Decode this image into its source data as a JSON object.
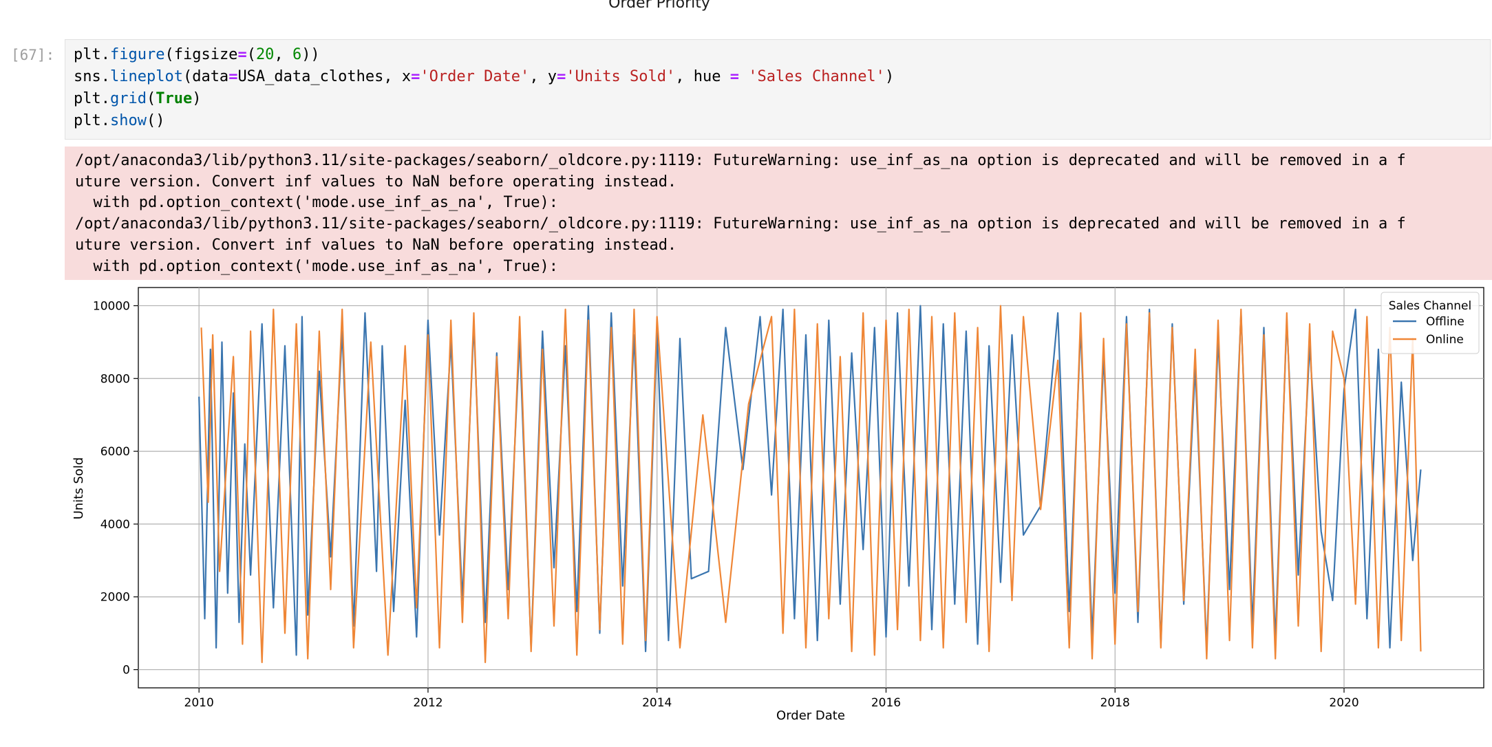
{
  "previous_output": {
    "title": "Order Priority"
  },
  "cell": {
    "prompt": "[67]:",
    "code_lines": [
      "plt.figure(figsize=(20, 6))",
      "sns.lineplot(data=USA_data_clothes, x='Order Date', y='Units Sold', hue = 'Sales Channel')",
      "plt.grid(True)",
      "plt.show()"
    ],
    "warnings": [
      "/opt/anaconda3/lib/python3.11/site-packages/seaborn/_oldcore.py:1119: FutureWarning: use_inf_as_na option is deprecated and will be removed in a f",
      "uture version. Convert inf values to NaN before operating instead.",
      "  with pd.option_context('mode.use_inf_as_na', True):",
      "/opt/anaconda3/lib/python3.11/site-packages/seaborn/_oldcore.py:1119: FutureWarning: use_inf_as_na option is deprecated and will be removed in a f",
      "uture version. Convert inf values to NaN before operating instead.",
      "  with pd.option_context('mode.use_inf_as_na', True):"
    ]
  },
  "chart_data": {
    "type": "line",
    "title": "",
    "xlabel": "Order Date",
    "ylabel": "Units Sold",
    "x_ticks": [
      "2010",
      "2012",
      "2014",
      "2016",
      "2018",
      "2020"
    ],
    "y_ticks": [
      "0",
      "2000",
      "4000",
      "6000",
      "8000",
      "10000"
    ],
    "xlim": [
      2009.47,
      2021.22
    ],
    "ylim": [
      -500,
      10500
    ],
    "grid": true,
    "legend": {
      "title": "Sales Channel",
      "placement": "top-right"
    },
    "colors": {
      "Offline": "#3a75af",
      "Online": "#ef8636"
    },
    "series": [
      {
        "name": "Offline",
        "x": [
          2010.0,
          2010.05,
          2010.1,
          2010.15,
          2010.2,
          2010.25,
          2010.3,
          2010.35,
          2010.4,
          2010.45,
          2010.55,
          2010.65,
          2010.75,
          2010.85,
          2010.9,
          2010.95,
          2011.05,
          2011.15,
          2011.25,
          2011.35,
          2011.45,
          2011.55,
          2011.6,
          2011.7,
          2011.8,
          2011.9,
          2012.0,
          2012.1,
          2012.2,
          2012.3,
          2012.4,
          2012.5,
          2012.6,
          2012.7,
          2012.8,
          2012.9,
          2013.0,
          2013.1,
          2013.2,
          2013.3,
          2013.4,
          2013.5,
          2013.6,
          2013.7,
          2013.8,
          2013.9,
          2014.0,
          2014.1,
          2014.2,
          2014.3,
          2014.45,
          2014.6,
          2014.75,
          2014.9,
          2015.0,
          2015.1,
          2015.2,
          2015.3,
          2015.4,
          2015.5,
          2015.6,
          2015.7,
          2015.8,
          2015.9,
          2016.0,
          2016.1,
          2016.2,
          2016.3,
          2016.4,
          2016.5,
          2016.6,
          2016.7,
          2016.8,
          2016.9,
          2017.0,
          2017.1,
          2017.2,
          2017.35,
          2017.5,
          2017.6,
          2017.7,
          2017.8,
          2017.9,
          2018.0,
          2018.1,
          2018.2,
          2018.3,
          2018.4,
          2018.5,
          2018.6,
          2018.7,
          2018.8,
          2018.9,
          2019.0,
          2019.1,
          2019.2,
          2019.3,
          2019.4,
          2019.5,
          2019.6,
          2019.7,
          2019.8,
          2019.9,
          2020.0,
          2020.1,
          2020.2,
          2020.3,
          2020.4,
          2020.5,
          2020.6,
          2020.67
        ],
        "y": [
          7500,
          1400,
          8800,
          600,
          9000,
          2100,
          7600,
          1300,
          6200,
          2600,
          9500,
          1700,
          8900,
          400,
          9700,
          1500,
          8200,
          3100,
          9300,
          1200,
          9800,
          2700,
          8900,
          1600,
          7400,
          900,
          9600,
          3700,
          9000,
          1900,
          9500,
          1300,
          8700,
          2200,
          9100,
          600,
          9300,
          2800,
          8900,
          1600,
          10000,
          1000,
          9800,
          2300,
          9200,
          500,
          9300,
          800,
          9100,
          2500,
          2700,
          9400,
          5500,
          9700,
          4800,
          9900,
          1400,
          9200,
          800,
          9600,
          1800,
          8700,
          3300,
          9400,
          900,
          9800,
          2300,
          10000,
          1100,
          9500,
          1800,
          9300,
          700,
          8900,
          2400,
          9200,
          3700,
          4500,
          9800,
          1600,
          9400,
          900,
          8600,
          2100,
          9700,
          1300,
          9900,
          700,
          9500,
          1800,
          8300,
          600,
          9100,
          2200,
          9800,
          1200,
          9400,
          800,
          9600,
          2600,
          8900,
          3800,
          1900,
          7700,
          9900,
          1400,
          8800,
          600,
          7900,
          3000,
          5500
        ]
      },
      {
        "name": "Online",
        "x": [
          2010.02,
          2010.08,
          2010.12,
          2010.18,
          2010.3,
          2010.38,
          2010.45,
          2010.55,
          2010.65,
          2010.75,
          2010.85,
          2010.95,
          2011.05,
          2011.15,
          2011.25,
          2011.35,
          2011.5,
          2011.65,
          2011.8,
          2011.9,
          2012.0,
          2012.1,
          2012.2,
          2012.3,
          2012.4,
          2012.5,
          2012.6,
          2012.7,
          2012.8,
          2012.9,
          2013.0,
          2013.1,
          2013.2,
          2013.3,
          2013.4,
          2013.5,
          2013.6,
          2013.7,
          2013.8,
          2013.9,
          2014.0,
          2014.2,
          2014.4,
          2014.6,
          2014.8,
          2015.0,
          2015.1,
          2015.2,
          2015.3,
          2015.4,
          2015.5,
          2015.6,
          2015.7,
          2015.8,
          2015.9,
          2016.0,
          2016.1,
          2016.2,
          2016.3,
          2016.4,
          2016.5,
          2016.6,
          2016.7,
          2016.8,
          2016.9,
          2017.0,
          2017.1,
          2017.2,
          2017.35,
          2017.5,
          2017.6,
          2017.7,
          2017.8,
          2017.9,
          2018.0,
          2018.1,
          2018.2,
          2018.3,
          2018.4,
          2018.5,
          2018.6,
          2018.7,
          2018.8,
          2018.9,
          2019.0,
          2019.1,
          2019.2,
          2019.3,
          2019.4,
          2019.5,
          2019.6,
          2019.7,
          2019.8,
          2019.9,
          2020.0,
          2020.1,
          2020.2,
          2020.3,
          2020.4,
          2020.5,
          2020.6,
          2020.67
        ],
        "y": [
          9400,
          4600,
          9200,
          2700,
          8600,
          700,
          9300,
          200,
          9900,
          1000,
          9500,
          300,
          9300,
          2200,
          9900,
          600,
          9000,
          400,
          8900,
          1700,
          9200,
          600,
          9600,
          1300,
          9800,
          200,
          8600,
          1400,
          9700,
          500,
          8800,
          1200,
          9900,
          400,
          9600,
          1100,
          9400,
          700,
          9900,
          800,
          9700,
          600,
          7000,
          1300,
          7300,
          9700,
          1000,
          9900,
          600,
          9500,
          1400,
          8600,
          500,
          9800,
          400,
          9600,
          1100,
          9900,
          800,
          9700,
          600,
          9800,
          1300,
          9400,
          500,
          10000,
          1900,
          9700,
          4400,
          8500,
          600,
          9800,
          300,
          9100,
          700,
          9500,
          1600,
          9800,
          600,
          9400,
          1900,
          8800,
          300,
          9600,
          800,
          9900,
          600,
          9200,
          300,
          9800,
          1200,
          9500,
          500,
          9300,
          8000,
          1800,
          9700,
          600,
          9400,
          800,
          9100,
          500
        ]
      }
    ]
  }
}
